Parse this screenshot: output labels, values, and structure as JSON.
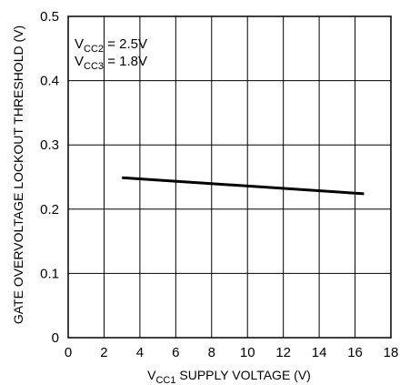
{
  "chart_data": {
    "type": "line",
    "xlabel": {
      "base": "V",
      "sub": "CC1",
      "rest": " SUPPLY VOLTAGE (V)"
    },
    "ylabel": "GATE OVERVOLTAGE LOCKOUT THRESHOLD (V)",
    "xlim": [
      0,
      18
    ],
    "ylim": [
      0,
      0.5
    ],
    "x_ticks": [
      0,
      2,
      4,
      6,
      8,
      10,
      12,
      14,
      16,
      18
    ],
    "y_ticks": [
      0,
      0.1,
      0.2,
      0.3,
      0.4,
      0.5
    ],
    "x_tick_labels": [
      "0",
      "2",
      "4",
      "6",
      "8",
      "10",
      "12",
      "14",
      "16",
      "18"
    ],
    "y_tick_labels": [
      "0",
      "0.1",
      "0.2",
      "0.3",
      "0.4",
      "0.5"
    ],
    "grid": true,
    "annotations": [
      {
        "base": "V",
        "sub": "CC2",
        "rest": " = 2.5V"
      },
      {
        "base": "V",
        "sub": "CC3",
        "rest": " = 1.8V"
      }
    ],
    "series": [
      {
        "x": [
          3.0,
          16.5
        ],
        "y": [
          0.249,
          0.224
        ]
      }
    ]
  }
}
